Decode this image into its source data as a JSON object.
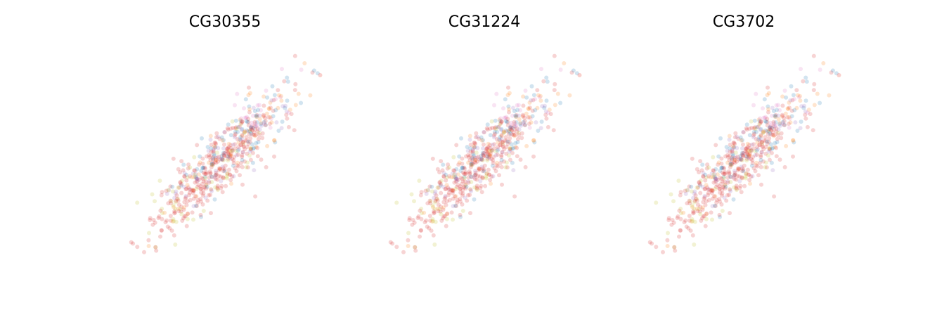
{
  "chart_data": [
    {
      "type": "scatter",
      "title": "CG30355",
      "axis": "off",
      "grid": false,
      "xlim": [
        -1,
        1
      ],
      "ylim": [
        -1,
        1
      ],
      "marker_alpha": 0.2,
      "palette": [
        "#d62728",
        "#1f77b4",
        "#ff7f0e",
        "#bcbd22",
        "#e377c2",
        "#9467bd"
      ]
    },
    {
      "type": "scatter",
      "title": "CG31224",
      "axis": "off",
      "grid": false,
      "xlim": [
        -1,
        1
      ],
      "ylim": [
        -1,
        1
      ],
      "marker_alpha": 0.2,
      "palette": [
        "#d62728",
        "#1f77b4",
        "#ff7f0e",
        "#bcbd22",
        "#e377c2",
        "#9467bd"
      ]
    },
    {
      "type": "scatter",
      "title": "CG3702",
      "axis": "off",
      "grid": false,
      "xlim": [
        -1,
        1
      ],
      "ylim": [
        -1,
        1
      ],
      "marker_alpha": 0.2,
      "palette": [
        "#d62728",
        "#1f77b4",
        "#ff7f0e",
        "#bcbd22",
        "#e377c2",
        "#9467bd"
      ]
    }
  ]
}
